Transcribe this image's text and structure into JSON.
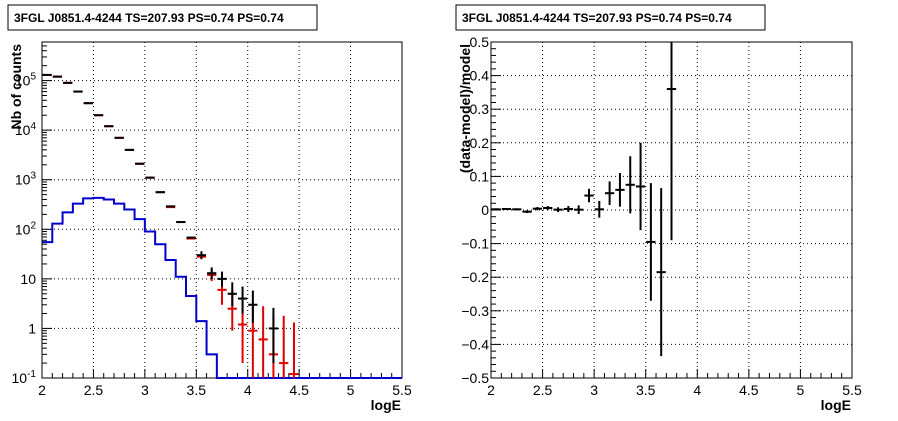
{
  "chart_data": [
    {
      "type": "histogram",
      "title": "3FGL J0851.4-4244 TS=207.93 PS=0.74 PS=0.74",
      "xlabel": "logE",
      "ylabel": "Nb of counts",
      "xlim": [
        2,
        5.5
      ],
      "ylim": [
        0.1,
        600000
      ],
      "yscale": "log",
      "grid": true,
      "xticks": [
        "2",
        "2.5",
        "3",
        "3.5",
        "4",
        "4.5",
        "5",
        "5.5"
      ],
      "yticks": [
        {
          "v": 0.1,
          "label": "10",
          "exp": "-1"
        },
        {
          "v": 1,
          "label": "1",
          "exp": ""
        },
        {
          "v": 10,
          "label": "10",
          "exp": ""
        },
        {
          "v": 100,
          "label": "10",
          "exp": "2"
        },
        {
          "v": 1000,
          "label": "10",
          "exp": "3"
        },
        {
          "v": 10000,
          "label": "10",
          "exp": "4"
        },
        {
          "v": 100000,
          "label": "10",
          "exp": "5"
        }
      ],
      "series": [
        {
          "style": "step",
          "color": "#0000cc",
          "bin_edges": [
            2.0,
            2.1,
            2.2,
            2.3,
            2.4,
            2.5,
            2.6,
            2.7,
            2.8,
            2.9,
            3.0,
            3.1,
            3.2,
            3.3,
            3.4,
            3.5,
            3.6,
            3.7,
            3.8,
            3.9,
            4.0,
            4.1,
            4.2,
            4.3,
            4.4,
            4.5,
            4.6,
            4.7,
            4.8,
            4.9,
            5.0,
            5.1,
            5.2,
            5.3,
            5.4,
            5.5
          ],
          "values": [
            55,
            130,
            220,
            330,
            420,
            430,
            400,
            330,
            250,
            160,
            90,
            50,
            24,
            11,
            4.5,
            1.4,
            0.3,
            0.1,
            0.1,
            0.1,
            0.1,
            0.1,
            0.1,
            0.1,
            0.1,
            0.1,
            0.1,
            0.1,
            0.1,
            0.1,
            0.1,
            0.1,
            0.1,
            0.1,
            0.1
          ]
        },
        {
          "style": "errorbar",
          "color": "#e00000",
          "x": [
            2.05,
            2.15,
            2.25,
            2.35,
            2.45,
            2.55,
            2.65,
            2.75,
            2.85,
            2.95,
            3.05,
            3.15,
            3.25,
            3.35,
            3.45,
            3.55,
            3.65,
            3.75,
            3.85,
            3.95,
            4.05,
            4.15,
            4.25,
            4.35,
            4.45
          ],
          "y": [
            130000,
            120000,
            90000,
            60000,
            35000,
            20000,
            12000,
            7000,
            4000,
            2100,
            1100,
            560,
            280,
            140,
            65,
            28,
            12,
            6,
            2.5,
            1.2,
            0.9,
            0.6,
            0.3,
            0.2,
            0.12
          ],
          "err_low": [
            0,
            0,
            0,
            0,
            0,
            0,
            0,
            0,
            0,
            0,
            0,
            0,
            0,
            0,
            0,
            3,
            3,
            3,
            1.6,
            1.0,
            0.8,
            0.55,
            0.28,
            0.19,
            0.115
          ],
          "err_high": [
            0,
            0,
            0,
            0,
            0,
            0,
            0,
            0,
            0,
            0,
            0,
            0,
            0,
            0,
            0,
            3,
            4,
            4,
            3.5,
            2.5,
            2.4,
            2.2,
            1.6,
            1.6,
            1.2
          ]
        },
        {
          "style": "errorbar",
          "color": "#000000",
          "x": [
            2.05,
            2.15,
            2.25,
            2.35,
            2.45,
            2.55,
            2.65,
            2.75,
            2.85,
            2.95,
            3.05,
            3.15,
            3.25,
            3.35,
            3.45,
            3.55,
            3.65,
            3.75,
            3.85,
            3.95,
            4.05,
            4.25
          ],
          "y": [
            130000,
            120000,
            90000,
            60000,
            35000,
            20000,
            12000,
            7000,
            4000,
            2100,
            1100,
            560,
            290,
            140,
            68,
            30,
            13,
            10,
            5,
            4,
            3,
            1
          ],
          "err_low": [
            0,
            0,
            0,
            0,
            0,
            0,
            0,
            0,
            0,
            0,
            0,
            0,
            0,
            0,
            0,
            5,
            3,
            3,
            2.2,
            2.0,
            1.7,
            0.8
          ],
          "err_high": [
            0,
            0,
            0,
            0,
            0,
            0,
            0,
            0,
            0,
            0,
            0,
            0,
            0,
            0,
            0,
            6,
            4,
            4,
            3.5,
            3.0,
            2.8,
            1.6
          ]
        }
      ]
    },
    {
      "type": "scatter",
      "title": "3FGL J0851.4-4244 TS=207.93 PS=0.74 PS=0.74",
      "xlabel": "logE",
      "ylabel": "(data-model)/model",
      "xlim": [
        2,
        5.5
      ],
      "ylim": [
        -0.5,
        0.5
      ],
      "grid": true,
      "xticks": [
        "2",
        "2.5",
        "3",
        "3.5",
        "4",
        "4.5",
        "5",
        "5.5"
      ],
      "yticks": [
        "−0.5",
        "−0.4",
        "−0.3",
        "−0.2",
        "−0.1",
        "0",
        "0.1",
        "0.2",
        "0.3",
        "0.4",
        "0.5"
      ],
      "ytick_values": [
        -0.5,
        -0.4,
        -0.3,
        -0.2,
        -0.1,
        0,
        0.1,
        0.2,
        0.3,
        0.4,
        0.5
      ],
      "series": [
        {
          "style": "errorbar",
          "color": "#000000",
          "x": [
            2.05,
            2.15,
            2.25,
            2.35,
            2.45,
            2.55,
            2.65,
            2.75,
            2.85,
            2.95,
            3.05,
            3.15,
            3.25,
            3.35,
            3.45,
            3.55,
            3.65,
            3.75
          ],
          "y": [
            0.002,
            0.003,
            0.002,
            -0.005,
            0.004,
            0.006,
            0.001,
            0.003,
            0.001,
            0.043,
            0.002,
            0.05,
            0.06,
            0.075,
            0.07,
            -0.095,
            -0.185,
            0.36
          ],
          "err": [
            0.003,
            0.003,
            0.003,
            0.004,
            0.005,
            0.006,
            0.007,
            0.009,
            0.013,
            0.02,
            0.025,
            0.035,
            0.05,
            0.085,
            0.13,
            0.175,
            0.25,
            0.45
          ]
        }
      ]
    }
  ]
}
